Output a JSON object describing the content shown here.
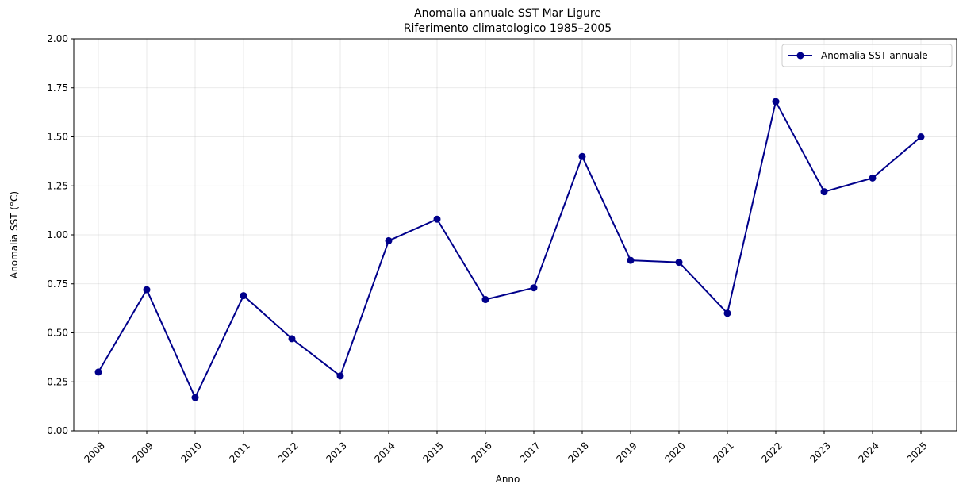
{
  "chart_data": {
    "type": "line",
    "title": "Anomalia annuale SST Mar Ligure",
    "subtitle": "Riferimento climatologico 1985–2005",
    "xlabel": "Anno",
    "ylabel": "Anomalia SST (°C)",
    "x": [
      "2008",
      "2009",
      "2010",
      "2011",
      "2012",
      "2013",
      "2014",
      "2015",
      "2016",
      "2017",
      "2018",
      "2019",
      "2020",
      "2021",
      "2022",
      "2023",
      "2024",
      "2025"
    ],
    "series": [
      {
        "name": "Anomalia SST annuale",
        "color": "#00008b",
        "values": [
          0.3,
          0.72,
          0.17,
          0.69,
          0.47,
          0.28,
          0.97,
          1.08,
          0.67,
          0.73,
          1.4,
          0.87,
          0.86,
          0.6,
          1.68,
          1.22,
          1.29,
          1.5
        ]
      }
    ],
    "ylim": [
      0.0,
      2.0
    ],
    "yticks": [
      "0.00",
      "0.25",
      "0.50",
      "0.75",
      "1.00",
      "1.25",
      "1.50",
      "1.75",
      "2.00"
    ],
    "grid": true,
    "legend_position": "top-right"
  }
}
